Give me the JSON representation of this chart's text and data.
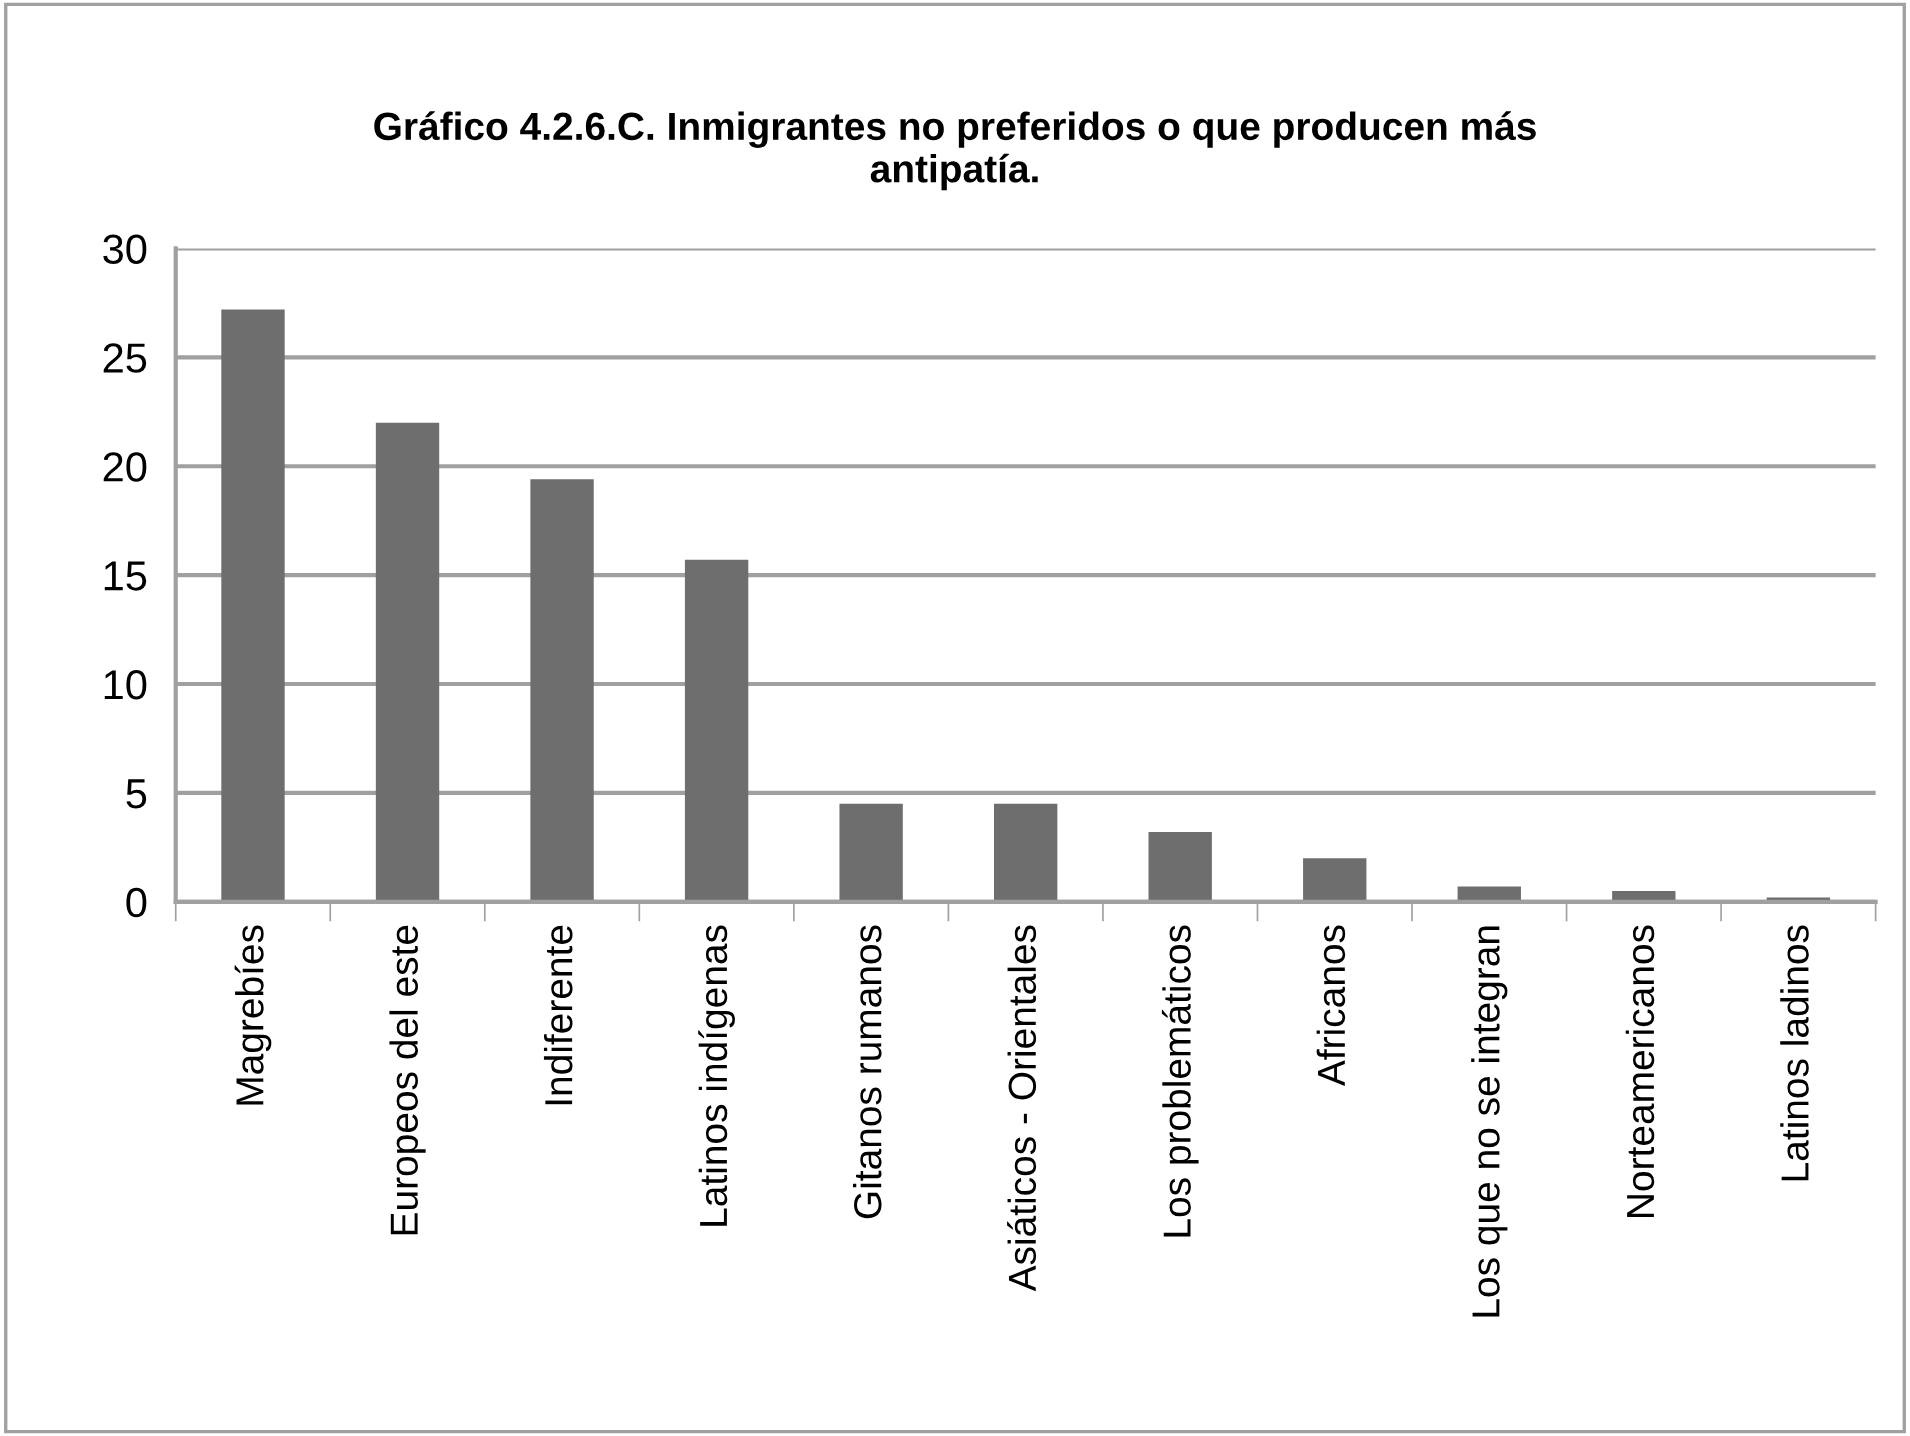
{
  "chart_data": {
    "type": "bar",
    "title": "Gráfico 4.2.6.C. Inmigrantes no preferidos o que producen más\nantipatía.",
    "categories": [
      "Magrebíes",
      "Europeos del este",
      "Indiferente",
      "Latinos indígenas",
      "Gitanos rumanos",
      "Asiáticos - Orientales",
      "Los problemáticos",
      "Africanos",
      "Los que no se integran",
      "Norteamericanos",
      "Latinos ladinos"
    ],
    "values": [
      27.2,
      22.0,
      19.4,
      15.7,
      4.5,
      4.5,
      3.2,
      2.0,
      0.7,
      0.5,
      0.2
    ],
    "color": "#6e6e6e",
    "ylim": [
      0,
      30
    ],
    "yticks": [
      0,
      5,
      10,
      15,
      20,
      25,
      30
    ],
    "grid": "y"
  }
}
